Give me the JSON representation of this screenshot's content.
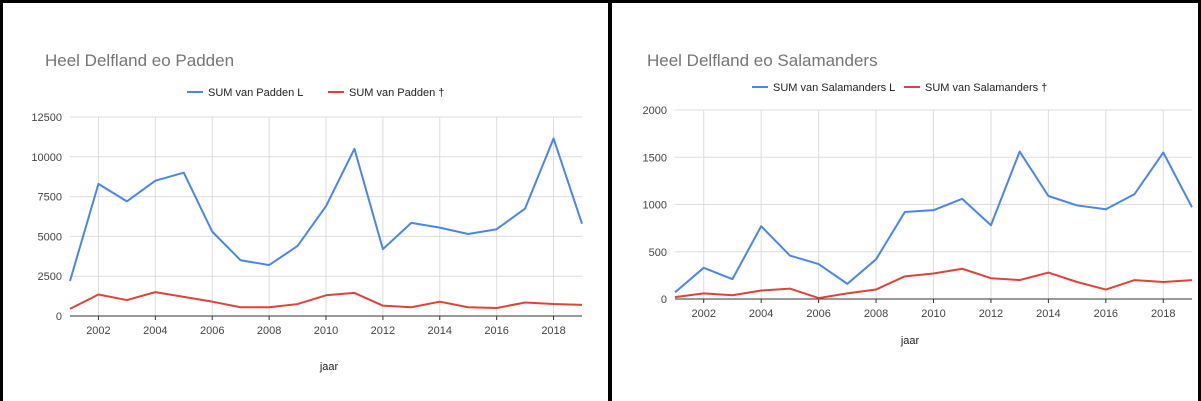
{
  "colors": {
    "series1": "#4a86e8",
    "series2": "#db4437",
    "grid": "#dddddd",
    "axis": "#333333"
  },
  "chart_data": [
    {
      "type": "line",
      "title": "Heel Delfland eo Padden",
      "xlabel": "jaar",
      "ylabel": "",
      "x": [
        2001,
        2002,
        2003,
        2004,
        2005,
        2006,
        2007,
        2008,
        2009,
        2010,
        2011,
        2012,
        2013,
        2014,
        2015,
        2016,
        2017,
        2018,
        2019
      ],
      "xticks": [
        "2002",
        "2004",
        "2006",
        "2008",
        "2010",
        "2012",
        "2014",
        "2016",
        "2018"
      ],
      "yticks": [
        "0",
        "2500",
        "5000",
        "7500",
        "10000",
        "12500"
      ],
      "xlim": [
        2001,
        2019
      ],
      "ylim": [
        0,
        12500
      ],
      "grid": true,
      "legend_position": "top",
      "series": [
        {
          "name": "SUM van Padden L",
          "color": "#4a86e8",
          "values": [
            2200,
            8300,
            7200,
            8500,
            9000,
            5300,
            3500,
            3200,
            4400,
            6900,
            10500,
            4200,
            5850,
            5550,
            5150,
            5450,
            6750,
            11150,
            5800
          ]
        },
        {
          "name": "SUM van Padden †",
          "color": "#db4437",
          "values": [
            450,
            1350,
            1000,
            1500,
            1200,
            900,
            550,
            550,
            750,
            1300,
            1450,
            650,
            550,
            900,
            550,
            500,
            850,
            750,
            700
          ]
        }
      ]
    },
    {
      "type": "line",
      "title": "Heel Delfland eo Salamanders",
      "xlabel": "jaar",
      "ylabel": "",
      "x": [
        2001,
        2002,
        2003,
        2004,
        2005,
        2006,
        2007,
        2008,
        2009,
        2010,
        2011,
        2012,
        2013,
        2014,
        2015,
        2016,
        2017,
        2018,
        2019
      ],
      "xticks": [
        "2002",
        "2004",
        "2006",
        "2008",
        "2010",
        "2012",
        "2014",
        "2016",
        "2018"
      ],
      "yticks": [
        "0",
        "500",
        "1000",
        "1500",
        "2000"
      ],
      "xlim": [
        2001,
        2019
      ],
      "ylim": [
        0,
        2000
      ],
      "grid": true,
      "legend_position": "top",
      "series": [
        {
          "name": "SUM van Salamanders L",
          "color": "#4a86e8",
          "values": [
            70,
            330,
            210,
            770,
            460,
            370,
            160,
            420,
            920,
            940,
            1060,
            780,
            1560,
            1090,
            990,
            950,
            1110,
            1550,
            970
          ]
        },
        {
          "name": "SUM van Salamanders †",
          "color": "#db4437",
          "values": [
            20,
            60,
            40,
            90,
            110,
            10,
            60,
            100,
            240,
            270,
            320,
            220,
            200,
            280,
            180,
            100,
            200,
            180,
            200
          ]
        }
      ]
    }
  ]
}
